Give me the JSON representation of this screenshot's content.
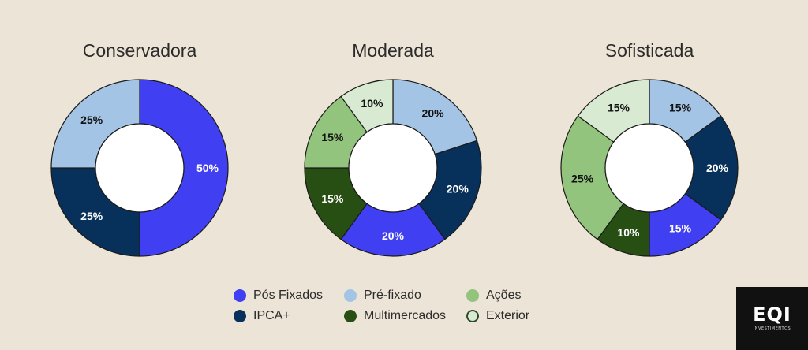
{
  "colors": {
    "pos_fixados": "#4040f2",
    "pre_fixado": "#a4c4e6",
    "ipca": "#07315a",
    "multimercados": "#274e13",
    "acoes": "#93c47d",
    "exterior": "#d9ead3",
    "outline": "#1a1a1a"
  },
  "chart_data": [
    {
      "type": "pie",
      "title": "Conservadora",
      "slices": [
        {
          "key": "pos_fixados",
          "label": "50%",
          "value": 50
        },
        {
          "key": "ipca",
          "label": "25%",
          "value": 25
        },
        {
          "key": "pre_fixado",
          "label": "25%",
          "value": 25
        }
      ]
    },
    {
      "type": "pie",
      "title": "Moderada",
      "slices": [
        {
          "key": "pre_fixado",
          "label": "20%",
          "value": 20
        },
        {
          "key": "ipca",
          "label": "20%",
          "value": 20
        },
        {
          "key": "pos_fixados",
          "label": "20%",
          "value": 20
        },
        {
          "key": "multimercados",
          "label": "15%",
          "value": 15
        },
        {
          "key": "acoes",
          "label": "15%",
          "value": 15
        },
        {
          "key": "exterior",
          "label": "10%",
          "value": 10
        }
      ]
    },
    {
      "type": "pie",
      "title": "Sofisticada",
      "slices": [
        {
          "key": "pre_fixado",
          "label": "15%",
          "value": 15
        },
        {
          "key": "ipca",
          "label": "20%",
          "value": 20
        },
        {
          "key": "pos_fixados",
          "label": "15%",
          "value": 15
        },
        {
          "key": "multimercados",
          "label": "10%",
          "value": 10
        },
        {
          "key": "acoes",
          "label": "25%",
          "value": 25
        },
        {
          "key": "exterior",
          "label": "15%",
          "value": 15
        }
      ]
    }
  ],
  "legend": [
    {
      "key": "pos_fixados",
      "label": "Pós Fixados"
    },
    {
      "key": "pre_fixado",
      "label": "Pré-fixado"
    },
    {
      "key": "acoes",
      "label": "Ações"
    },
    {
      "key": "ipca",
      "label": "IPCA+"
    },
    {
      "key": "multimercados",
      "label": "Multimercados"
    },
    {
      "key": "exterior",
      "label": "Exterior"
    }
  ],
  "logo": {
    "mark": "EQI",
    "subtitle": "INVESTIMENTOS"
  }
}
